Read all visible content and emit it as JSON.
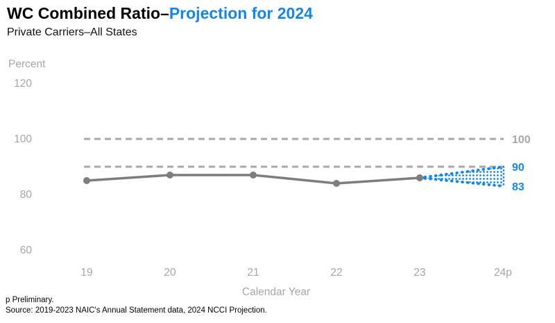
{
  "header": {
    "title_black": "WC Combined Ratio–",
    "title_blue": "Projection for 2024",
    "subtitle": "Private Carriers–All States"
  },
  "chart_data": {
    "type": "line",
    "title": "WC Combined Ratio–Projection for 2024",
    "subtitle": "Private Carriers–All States",
    "y_axis_title": "Percent",
    "x_axis_title": "Calendar Year",
    "categories": [
      "19",
      "20",
      "21",
      "22",
      "23",
      "24p"
    ],
    "series": [
      {
        "name": "Combined Ratio",
        "values": [
          85,
          87,
          87,
          84,
          86
        ]
      }
    ],
    "projection": {
      "category": "24p",
      "from_category": "23",
      "from_value": 86,
      "low": 83,
      "high": 90
    },
    "reference_lines": [
      {
        "value": 100
      },
      {
        "value": 90
      }
    ],
    "right_labels": [
      {
        "text": "100",
        "value": 100,
        "color": "#a6a6a6"
      },
      {
        "text": "90",
        "value": 90,
        "color": "#1287e8"
      },
      {
        "text": "83",
        "value": 83,
        "color": "#1287e8"
      }
    ],
    "y_ticks": [
      120,
      100,
      80,
      60
    ],
    "ylim": [
      55,
      125
    ],
    "grid": "off",
    "legend": "none"
  },
  "footnotes": {
    "line1": "p Preliminary.",
    "line2": "Source: 2019-2023 NAIC's Annual Statement data, 2024 NCCI Projection."
  },
  "colors": {
    "accent_blue": "#1287e8",
    "series_gray": "#7d7d7d",
    "reference_gray": "#a8a8a8",
    "axis_text_gray": "#a6a6a6"
  }
}
